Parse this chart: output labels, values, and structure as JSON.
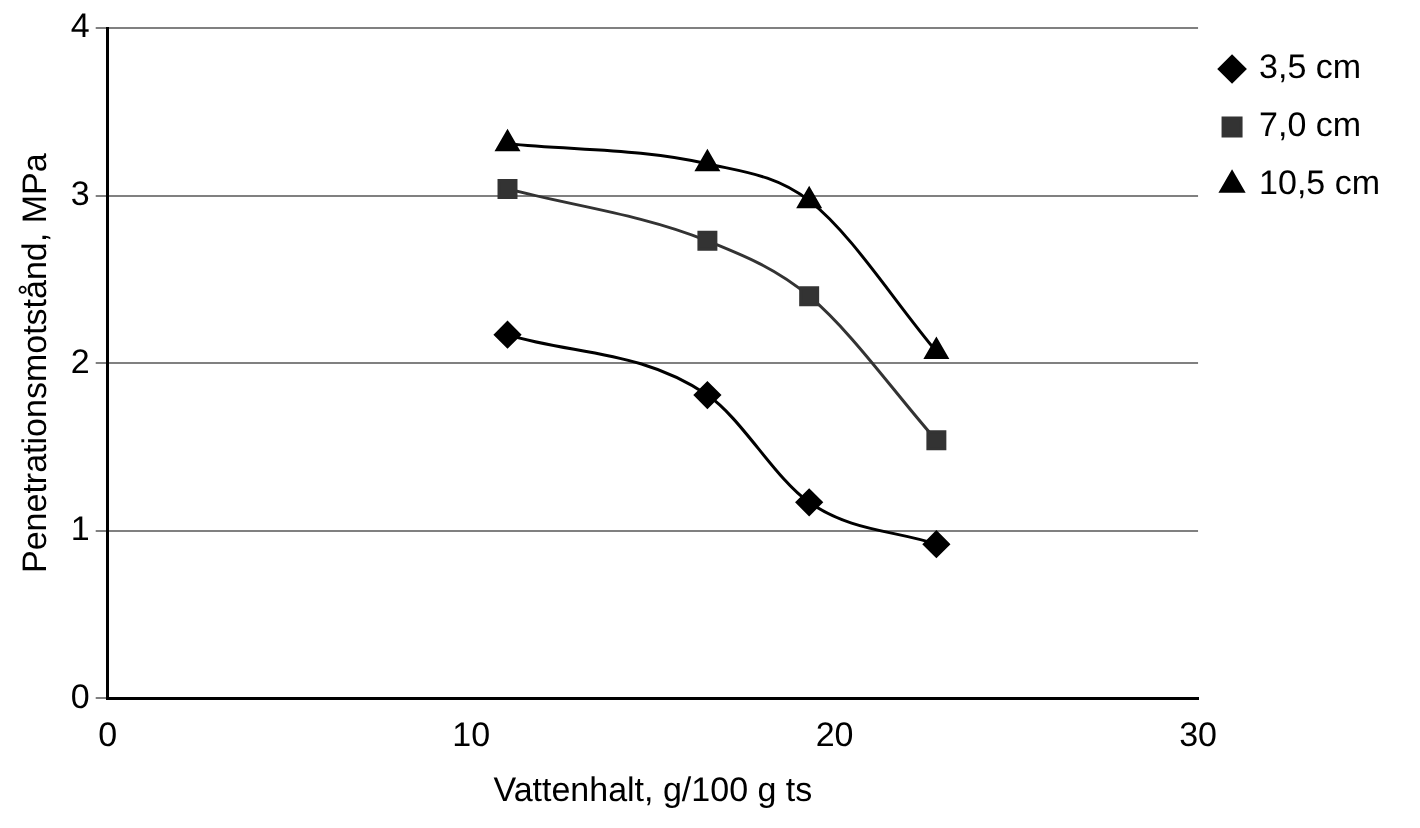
{
  "chart_data": {
    "type": "line",
    "xlabel": "Vattenhalt, g/100 g ts",
    "ylabel": "Penetrationsmotstånd, MPa",
    "x": [
      11,
      16.5,
      19.3,
      22.8
    ],
    "series": [
      {
        "name": "3,5 cm",
        "color": "#000000",
        "marker": "diamond",
        "values": [
          2.17,
          1.81,
          1.17,
          0.92
        ]
      },
      {
        "name": "7,0 cm",
        "color": "#333333",
        "marker": "square",
        "values": [
          3.04,
          2.73,
          2.4,
          1.54
        ]
      },
      {
        "name": "10,5 cm",
        "color": "#000000",
        "marker": "triangle",
        "values": [
          3.31,
          3.19,
          2.97,
          2.07
        ]
      }
    ],
    "xlim": [
      0,
      30
    ],
    "xticks": [
      0,
      10,
      20,
      30
    ],
    "ylim": [
      0,
      4
    ],
    "yticks": [
      0,
      1,
      2,
      3,
      4
    ],
    "grid": "y",
    "legend": "right"
  }
}
